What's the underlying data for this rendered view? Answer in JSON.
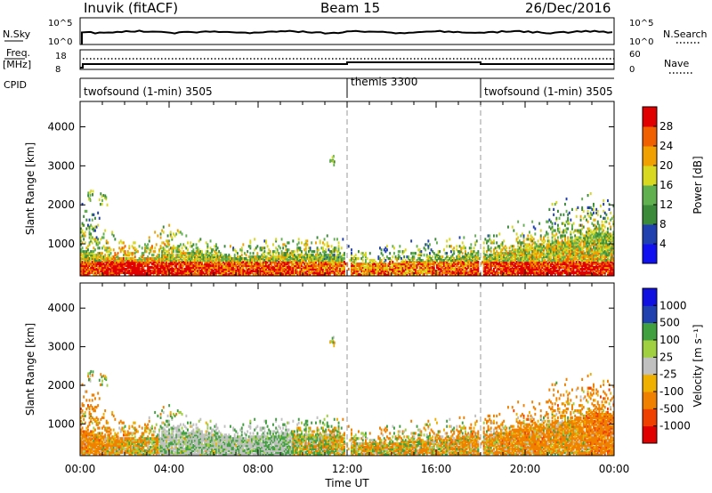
{
  "header": {
    "station": "Inuvik (fitACF)",
    "beam": "Beam 15",
    "date": "26/Dec/2016"
  },
  "top_panels": {
    "nsky_label": "N.Sky",
    "nsky_ticks": [
      "10^5",
      "10^0"
    ],
    "nsearch_label": "N.Search",
    "nsearch_ticks": [
      "10^5",
      "10^0"
    ],
    "freq_label_line1": "Freq.",
    "freq_label_line2": "[MHz]",
    "freq_ticks": [
      "18",
      "8"
    ],
    "nave_label": "Nave",
    "nave_ticks": [
      "60",
      "0"
    ],
    "cpid_label": "CPID",
    "cpid_segments": [
      {
        "label": "twofsound (1-min) 3505",
        "start_hour": 0,
        "end_hour": 12
      },
      {
        "label": "themis 3300",
        "start_hour": 12,
        "end_hour": 18
      },
      {
        "label": "twofsound (1-min) 3505",
        "start_hour": 18,
        "end_hour": 24
      }
    ]
  },
  "colors": {
    "power_scale": [
      "#1010f0",
      "#2040b0",
      "#3a8a3a",
      "#60b050",
      "#d8d820",
      "#f0a000",
      "#f06000",
      "#e00000"
    ],
    "velocity_scale": [
      "#e00000",
      "#f04000",
      "#f08000",
      "#f0b000",
      "#c0c0c0",
      "#a0d040",
      "#40a040",
      "#2040b0",
      "#1010e0"
    ],
    "ground_scatter": "#c0c0c0"
  },
  "chart_data": [
    {
      "type": "heatmap",
      "name": "Power",
      "ylabel": "Slant Range [km]",
      "xlabel": "Time UT",
      "x_ticks": [
        "00:00",
        "04:00",
        "08:00",
        "12:00",
        "16:00",
        "20:00",
        "00:00"
      ],
      "y_ticks": [
        1000,
        2000,
        3000,
        4000
      ],
      "xlim_hours": [
        0,
        24
      ],
      "ylim_km": [
        180,
        4650
      ],
      "colorbar_label": "Power [dB]",
      "colorbar_ticks": [
        "4",
        "8",
        "12",
        "16",
        "20",
        "24",
        "28"
      ],
      "colorbar_range": [
        0,
        30
      ],
      "profile": [
        [
          0.0,
          760,
          2400,
          18
        ],
        [
          0.5,
          720,
          2300,
          17
        ],
        [
          1.0,
          640,
          1700,
          19
        ],
        [
          1.5,
          620,
          1400,
          21
        ],
        [
          2.0,
          600,
          1300,
          22
        ],
        [
          2.5,
          580,
          1200,
          22
        ],
        [
          3.0,
          600,
          1300,
          21
        ],
        [
          3.5,
          650,
          1500,
          20
        ],
        [
          4.0,
          700,
          1700,
          20
        ],
        [
          4.5,
          720,
          1400,
          19
        ],
        [
          5.0,
          740,
          1300,
          18
        ],
        [
          5.5,
          720,
          1200,
          18
        ],
        [
          6.0,
          680,
          1100,
          17
        ],
        [
          6.5,
          640,
          1000,
          17
        ],
        [
          7.0,
          620,
          1100,
          17
        ],
        [
          7.5,
          620,
          1150,
          17
        ],
        [
          8.0,
          640,
          1200,
          17
        ],
        [
          8.5,
          660,
          1200,
          17
        ],
        [
          9.0,
          680,
          1200,
          17
        ],
        [
          9.5,
          700,
          1300,
          17
        ],
        [
          10.0,
          700,
          1300,
          17
        ],
        [
          10.5,
          680,
          1250,
          17
        ],
        [
          11.0,
          680,
          1300,
          16
        ],
        [
          11.5,
          700,
          1350,
          16
        ],
        [
          12.0,
          560,
          1200,
          15
        ],
        [
          12.5,
          460,
          900,
          14
        ],
        [
          13.0,
          460,
          1000,
          14
        ],
        [
          13.5,
          480,
          1100,
          14
        ],
        [
          14.0,
          480,
          1100,
          15
        ],
        [
          14.5,
          500,
          1000,
          15
        ],
        [
          15.0,
          520,
          1100,
          15
        ],
        [
          15.5,
          540,
          1200,
          15
        ],
        [
          16.0,
          560,
          1100,
          16
        ],
        [
          16.5,
          580,
          1200,
          16
        ],
        [
          17.0,
          620,
          1300,
          17
        ],
        [
          17.5,
          660,
          1300,
          17
        ],
        [
          18.0,
          660,
          1400,
          18
        ],
        [
          18.5,
          700,
          1500,
          18
        ],
        [
          19.0,
          740,
          1500,
          19
        ],
        [
          19.5,
          800,
          1600,
          19
        ],
        [
          20.0,
          860,
          1700,
          19
        ],
        [
          20.5,
          900,
          1800,
          19
        ],
        [
          21.0,
          960,
          2000,
          19
        ],
        [
          21.5,
          1000,
          2100,
          20
        ],
        [
          22.0,
          1050,
          2300,
          20
        ],
        [
          22.5,
          1150,
          2500,
          20
        ],
        [
          23.0,
          1250,
          2600,
          20
        ],
        [
          23.5,
          1250,
          2300,
          19
        ],
        [
          24.0,
          1200,
          2100,
          19
        ]
      ],
      "scatter_clusters": [
        {
          "time": 11.3,
          "range": 3100,
          "spread_t": 0.2,
          "spread_r": 120,
          "n": 10
        },
        {
          "time": 1.0,
          "range": 2100,
          "spread_t": 0.4,
          "spread_r": 150,
          "n": 12
        },
        {
          "time": 0.4,
          "range": 2200,
          "spread_t": 0.3,
          "spread_r": 150,
          "n": 12
        }
      ]
    },
    {
      "type": "heatmap",
      "name": "Velocity",
      "ylabel": "Slant Range [km]",
      "xlabel": "Time UT",
      "x_ticks": [
        "00:00",
        "04:00",
        "08:00",
        "12:00",
        "16:00",
        "20:00",
        "00:00"
      ],
      "y_ticks": [
        1000,
        2000,
        3000,
        4000
      ],
      "xlim_hours": [
        0,
        24
      ],
      "ylim_km": [
        180,
        4650
      ],
      "colorbar_label": "Velocity [m s⁻¹]",
      "colorbar_ticks": [
        "-1000",
        "-500",
        "-100",
        "-25",
        "25",
        "100",
        "500",
        "1000"
      ],
      "vel_profile": [
        [
          0.0,
          -250
        ],
        [
          1.0,
          -200
        ],
        [
          2.0,
          -120
        ],
        [
          3.0,
          -60
        ],
        [
          4.0,
          -20
        ],
        [
          5.0,
          10
        ],
        [
          6.0,
          0
        ],
        [
          7.0,
          10
        ],
        [
          8.0,
          60
        ],
        [
          9.0,
          80
        ],
        [
          10.0,
          50
        ],
        [
          11.0,
          20
        ],
        [
          12.0,
          -50
        ],
        [
          13.0,
          -80
        ],
        [
          14.0,
          -60
        ],
        [
          15.0,
          -40
        ],
        [
          16.0,
          -80
        ],
        [
          17.0,
          -120
        ],
        [
          18.0,
          -150
        ],
        [
          19.0,
          -200
        ],
        [
          20.0,
          -250
        ],
        [
          21.0,
          -200
        ],
        [
          22.0,
          -150
        ],
        [
          23.0,
          -300
        ],
        [
          24.0,
          -350
        ]
      ],
      "ground_scatter_window_hours": [
        3.5,
        9.5
      ]
    }
  ]
}
